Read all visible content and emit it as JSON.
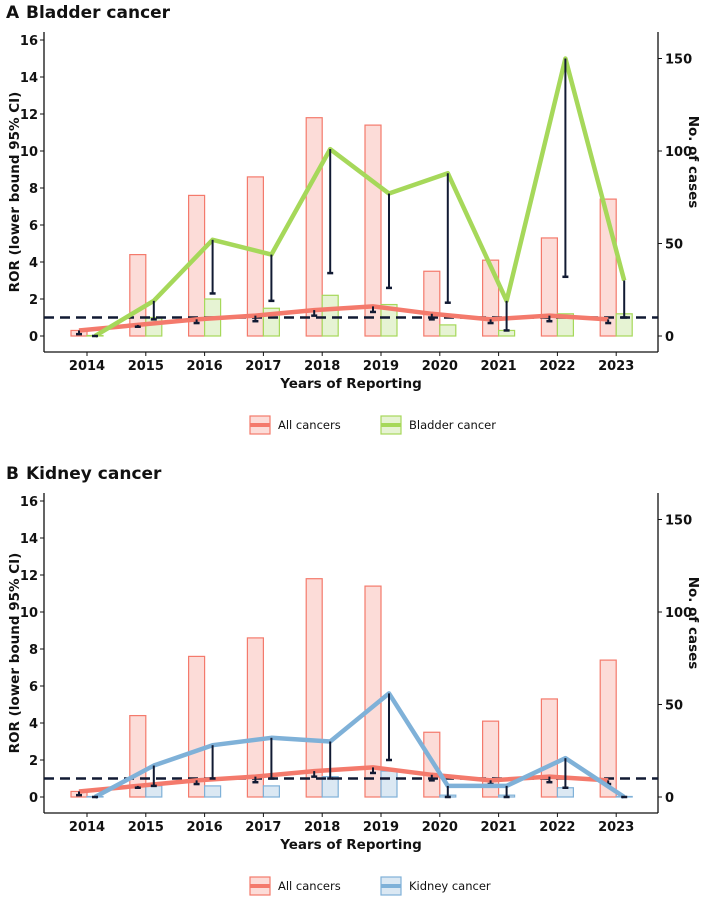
{
  "chart_data": [
    {
      "type": "bar+line",
      "panel_label": "A",
      "title": "Bladder cancer",
      "xlabel": "Years of Reporting",
      "ylabel": "ROR (lower bound 95% CI)",
      "y2label": "No. of cases",
      "categories": [
        "2014",
        "2015",
        "2016",
        "2017",
        "2018",
        "2019",
        "2020",
        "2021",
        "2022",
        "2023"
      ],
      "ylim": [
        0,
        16
      ],
      "yticks": [
        "0",
        "2",
        "4",
        "6",
        "8",
        "10",
        "12",
        "14",
        "16"
      ],
      "y2lim": [
        0,
        160
      ],
      "y2ticks": [
        "0",
        "50",
        "100",
        "150"
      ],
      "reference_line": 1,
      "series": [
        {
          "name": "All cancers",
          "color": "#f47a6c",
          "bar_fill": "#fcdcd8",
          "cases": [
            3,
            44,
            76,
            86,
            118,
            114,
            35,
            41,
            53,
            74
          ],
          "ror": [
            0.3,
            0.6,
            0.9,
            1.1,
            1.4,
            1.6,
            1.2,
            0.9,
            1.1,
            0.9
          ],
          "ror_lower": [
            0.1,
            0.5,
            0.7,
            0.8,
            1.1,
            1.3,
            0.9,
            0.7,
            0.8,
            0.7
          ]
        },
        {
          "name": "Bladder cancer",
          "color": "#a6d85a",
          "bar_fill": "#e6f3d3",
          "cases": [
            0,
            10,
            20,
            15,
            22,
            17,
            6,
            3,
            12,
            12
          ],
          "ror": [
            0,
            1.9,
            5.2,
            4.4,
            10.1,
            7.7,
            8.8,
            1.9,
            15.0,
            3.0
          ],
          "ror_lower": [
            0,
            0.9,
            2.3,
            1.9,
            3.4,
            2.6,
            1.8,
            0.3,
            3.2,
            1.0
          ]
        }
      ],
      "legend": "bottom"
    },
    {
      "type": "bar+line",
      "panel_label": "B",
      "title": "Kidney cancer",
      "xlabel": "Years of Reporting",
      "ylabel": "ROR (lower bound 95% CI)",
      "y2label": "No. of cases",
      "categories": [
        "2014",
        "2015",
        "2016",
        "2017",
        "2018",
        "2019",
        "2020",
        "2021",
        "2022",
        "2023"
      ],
      "ylim": [
        0,
        16
      ],
      "yticks": [
        "0",
        "2",
        "4",
        "6",
        "8",
        "10",
        "12",
        "14",
        "16"
      ],
      "y2lim": [
        0,
        160
      ],
      "y2ticks": [
        "0",
        "50",
        "100",
        "150"
      ],
      "reference_line": 1,
      "series": [
        {
          "name": "All cancers",
          "color": "#f47a6c",
          "bar_fill": "#fcdcd8",
          "cases": [
            3,
            44,
            76,
            86,
            118,
            114,
            35,
            41,
            53,
            74
          ],
          "ror": [
            0.3,
            0.6,
            0.9,
            1.1,
            1.4,
            1.6,
            1.2,
            0.9,
            1.1,
            0.9
          ],
          "ror_lower": [
            0.1,
            0.5,
            0.7,
            0.8,
            1.1,
            1.3,
            0.9,
            0.7,
            0.8,
            0.7
          ]
        },
        {
          "name": "Kidney cancer",
          "color": "#7fb1d8",
          "bar_fill": "#dbe8f3",
          "cases": [
            0,
            6,
            6,
            6,
            11,
            14,
            1,
            1,
            5,
            0
          ],
          "ror": [
            0,
            1.7,
            2.8,
            3.2,
            3.0,
            5.6,
            0.6,
            0.6,
            2.1,
            0
          ],
          "ror_lower": [
            0,
            0.6,
            1.0,
            1.0,
            1.0,
            2.0,
            0.0,
            0.0,
            0.5,
            0
          ]
        }
      ],
      "legend": "bottom"
    }
  ]
}
